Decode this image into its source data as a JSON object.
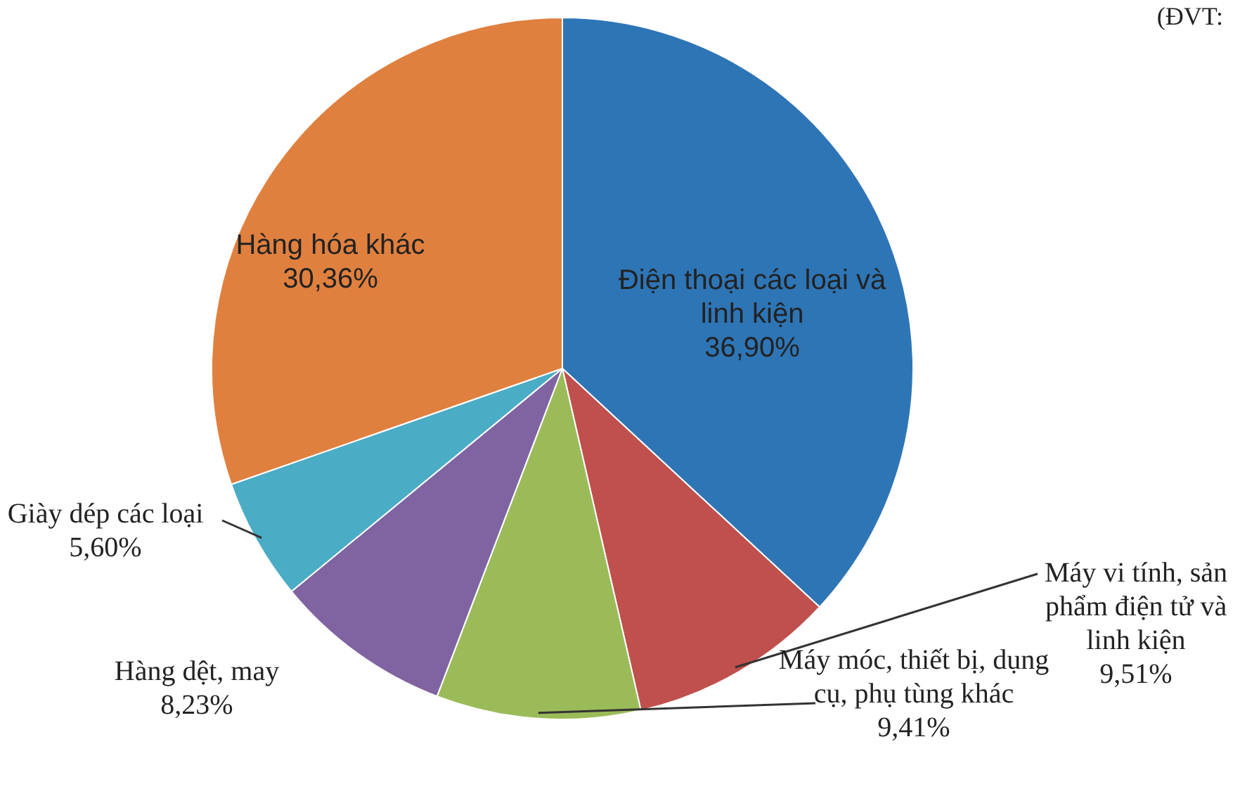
{
  "chart_data": {
    "type": "pie",
    "categories": [
      "Điện thoại các loại và linh kiện",
      "Máy vi tính, sản phẩm điện tử và linh kiện",
      "Máy móc, thiết bị, dụng cụ, phụ tùng khác",
      "Hàng dệt, may",
      "Giày dép các loại",
      "Hàng hóa khác"
    ],
    "values": [
      36.9,
      9.51,
      9.41,
      8.23,
      5.6,
      30.36
    ],
    "value_labels": [
      "36,90%",
      "9,51%",
      "9,41%",
      "8,23%",
      "5,60%",
      "30,36%"
    ],
    "colors": [
      "#2e75b6",
      "#c0504d",
      "#9bbb59",
      "#8064a2",
      "#4bacc6",
      "#e0803f"
    ],
    "legend": false,
    "annotations": [
      "(ĐVT:"
    ]
  }
}
